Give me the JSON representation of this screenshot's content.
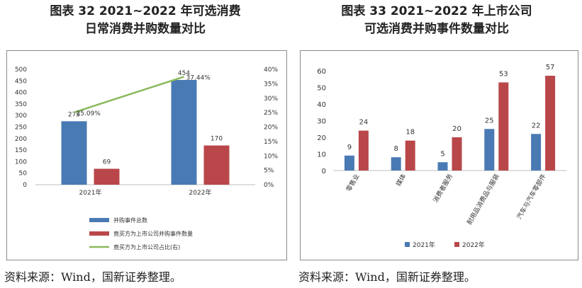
{
  "left": {
    "title_line1": "图表 32  2021~2022 年可选消费",
    "title_line2": "日常消费并购数量对比",
    "source": "资料来源：Wind，国新证券整理。"
  },
  "right": {
    "title_line1": "图表 33  2021~2022 年上市公司",
    "title_line2": "可选消费并购事件数量对比",
    "source": "资料来源：Wind，国新证券整理。"
  },
  "colors": {
    "blue": "#4a7ab4",
    "red": "#b9474a",
    "green": "#8ab95c"
  },
  "chart_data": [
    {
      "type": "bar",
      "categories": [
        "2021年",
        "2022年"
      ],
      "series": [
        {
          "name": "并购事件总数",
          "type": "bar",
          "axis": "left",
          "values": [
            275,
            454
          ],
          "color": "#4a7ab4"
        },
        {
          "name": "竟买方为上市公司并购事件数量",
          "type": "bar",
          "axis": "left",
          "values": [
            69,
            170
          ],
          "color": "#b9474a"
        },
        {
          "name": "竟买方为上市公司占比(右)",
          "type": "line",
          "axis": "right",
          "values": [
            25.09,
            37.44
          ],
          "labels": [
            "25.09%",
            "37.44%"
          ],
          "color": "#8ab95c"
        }
      ],
      "ylim": [
        0,
        500
      ],
      "yticks": [
        "0",
        "50",
        "100",
        "150",
        "200",
        "250",
        "300",
        "350",
        "400",
        "450",
        "500"
      ],
      "y2lim": [
        0,
        40
      ],
      "y2ticks": [
        "0%",
        "5%",
        "10%",
        "15%",
        "20%",
        "25%",
        "30%",
        "35%",
        "40%"
      ],
      "legend_position": "bottom",
      "grid": false
    },
    {
      "type": "bar",
      "categories": [
        "零售业",
        "媒体",
        "消费者服务",
        "耐用品消费品与服装",
        "汽车与汽车零部件"
      ],
      "series": [
        {
          "name": "2021年",
          "values": [
            9,
            8,
            5,
            25,
            22
          ],
          "color": "#4a7ab4"
        },
        {
          "name": "2022年",
          "values": [
            24,
            18,
            20,
            53,
            57
          ],
          "color": "#b9474a"
        }
      ],
      "ylim": [
        0,
        60
      ],
      "yticks": [
        "0",
        "10",
        "20",
        "30",
        "40",
        "50",
        "60"
      ],
      "legend_position": "bottom",
      "grid": false
    }
  ]
}
